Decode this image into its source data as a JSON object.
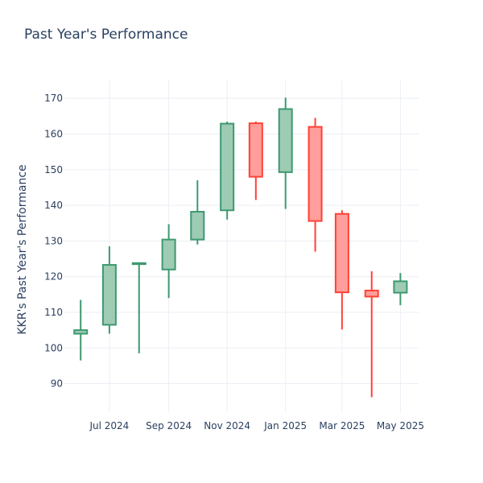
{
  "chart_data": {
    "type": "candlestick",
    "title": "Past Year's Performance",
    "ylabel": "KKR's Past Year's Performance",
    "xlabel": "",
    "ylim": [
      82,
      175
    ],
    "y_ticks": [
      90,
      100,
      110,
      120,
      130,
      140,
      150,
      160,
      170
    ],
    "x_ticks": [
      {
        "date": "2024-07-01",
        "label": "Jul 2024"
      },
      {
        "date": "2024-09-01",
        "label": "Sep 2024"
      },
      {
        "date": "2024-11-01",
        "label": "Nov 2024"
      },
      {
        "date": "2025-01-01",
        "label": "Jan 2025"
      },
      {
        "date": "2025-03-01",
        "label": "Mar 2025"
      },
      {
        "date": "2025-05-01",
        "label": "May 2025"
      }
    ],
    "xlim": [
      "2024-05-15",
      "2025-05-20"
    ],
    "grid": true,
    "increasing_color": "#3d9970",
    "increasing_fill": "#9ecbb4",
    "decreasing_color": "#ff4136",
    "decreasing_fill": "#ff9e9a",
    "candles": [
      {
        "date": "2024-06-01",
        "open": 104.0,
        "high": 113.5,
        "low": 96.5,
        "close": 105.0
      },
      {
        "date": "2024-07-01",
        "open": 106.5,
        "high": 128.5,
        "low": 104.0,
        "close": 123.3
      },
      {
        "date": "2024-08-01",
        "open": 123.5,
        "high": 124.0,
        "low": 98.5,
        "close": 123.8
      },
      {
        "date": "2024-09-01",
        "open": 122.0,
        "high": 134.7,
        "low": 114.0,
        "close": 130.4
      },
      {
        "date": "2024-10-01",
        "open": 130.4,
        "high": 147.0,
        "low": 129.0,
        "close": 138.2
      },
      {
        "date": "2024-11-01",
        "open": 138.6,
        "high": 163.5,
        "low": 136.0,
        "close": 162.9
      },
      {
        "date": "2024-12-01",
        "open": 163.0,
        "high": 163.5,
        "low": 141.5,
        "close": 148.0
      },
      {
        "date": "2025-01-01",
        "open": 149.3,
        "high": 170.2,
        "low": 139.0,
        "close": 167.0
      },
      {
        "date": "2025-02-01",
        "open": 162.0,
        "high": 164.5,
        "low": 127.0,
        "close": 135.6
      },
      {
        "date": "2025-03-01",
        "open": 137.6,
        "high": 138.6,
        "low": 105.2,
        "close": 115.6
      },
      {
        "date": "2025-04-01",
        "open": 116.1,
        "high": 121.5,
        "low": 86.2,
        "close": 114.4
      },
      {
        "date": "2025-05-01",
        "open": 115.5,
        "high": 121.0,
        "low": 112.0,
        "close": 118.7
      }
    ]
  }
}
